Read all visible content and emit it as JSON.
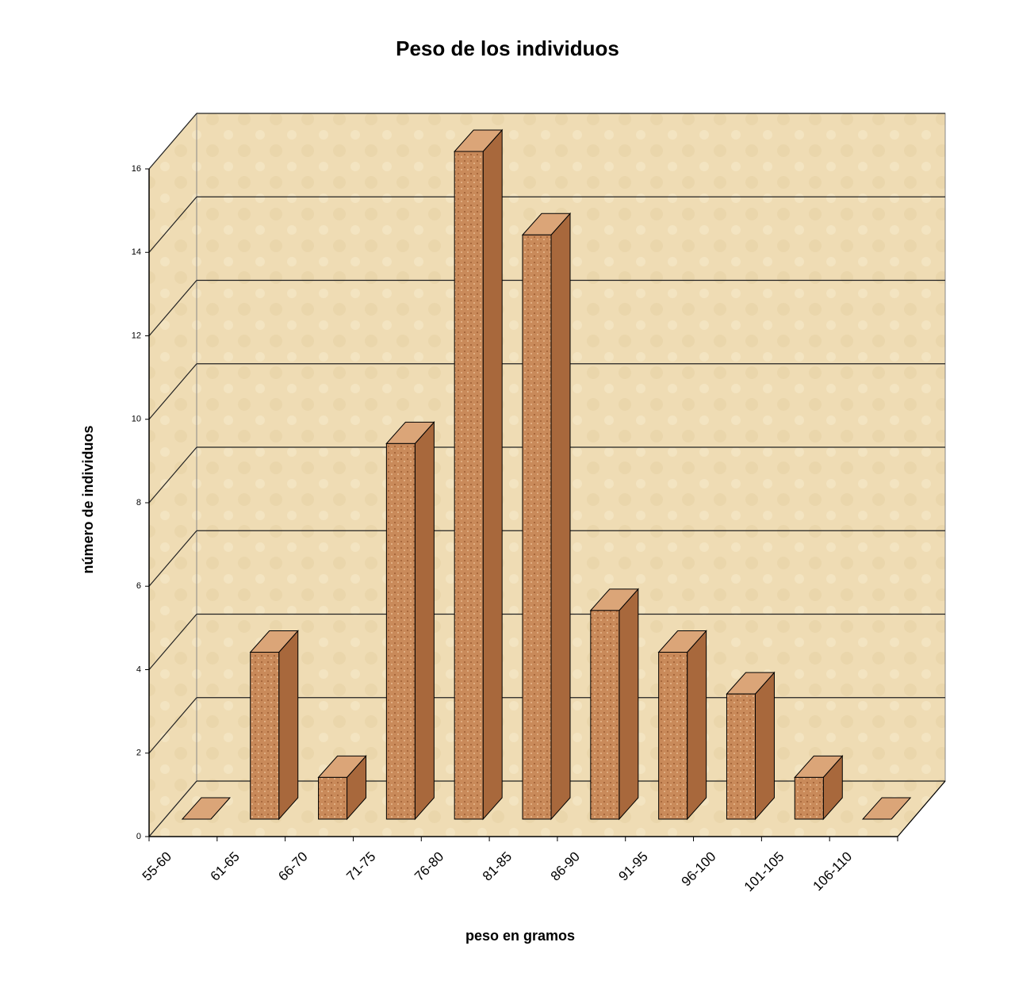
{
  "chart_data": {
    "type": "bar3d",
    "title": "Peso de los individuos",
    "x_label": "peso en gramos",
    "y_label": "número de individuos",
    "categories": [
      "55-60",
      "61-65",
      "66-70",
      "71-75",
      "76-80",
      "81-85",
      "86-90",
      "91-95",
      "96-100",
      "101-105",
      "106-110"
    ],
    "values": [
      0,
      4,
      1,
      9,
      16,
      14,
      5,
      4,
      3,
      1,
      0
    ],
    "color": "#c98a5a",
    "ylim": [
      0,
      16
    ],
    "yticks": [
      0,
      2,
      4,
      6,
      8,
      10,
      12,
      14,
      16
    ],
    "grid": true
  }
}
